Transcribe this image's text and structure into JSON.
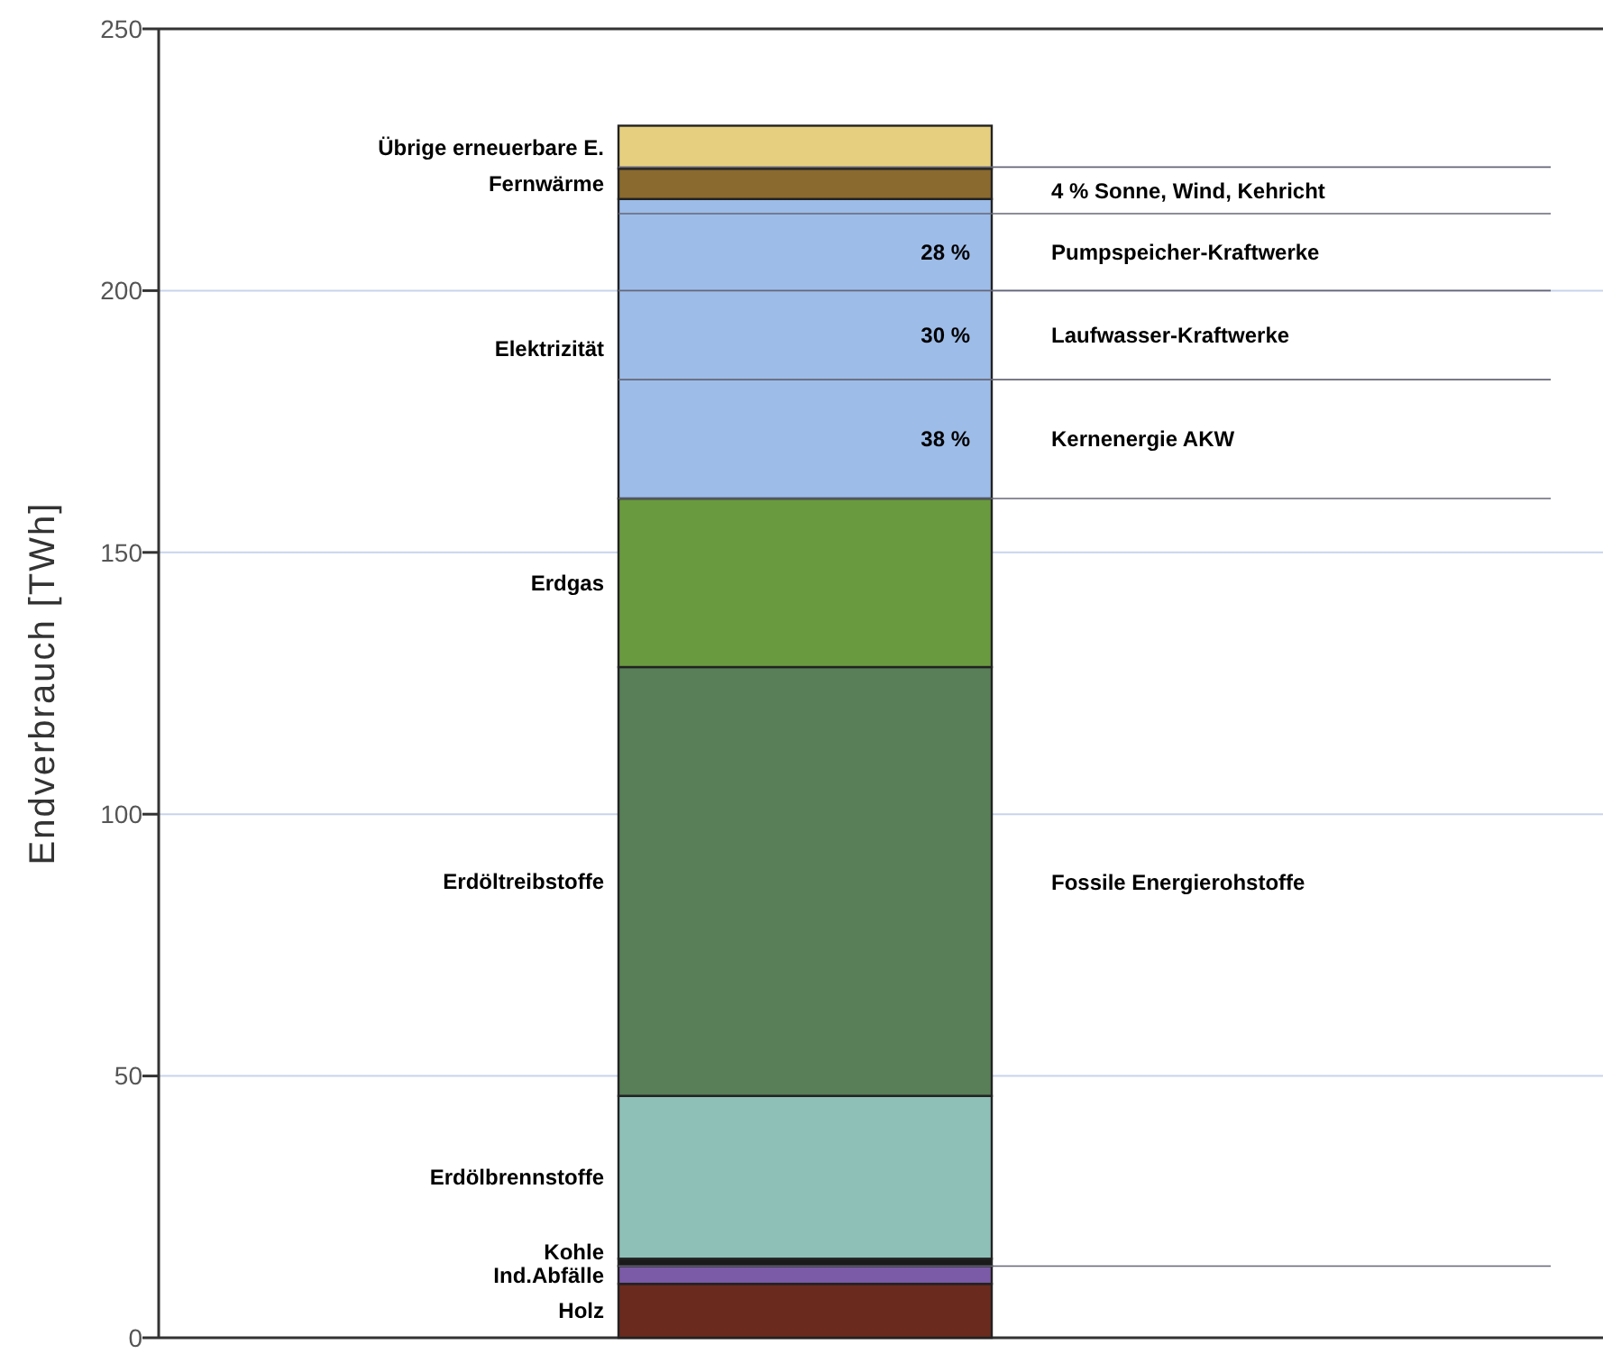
{
  "chart_data": {
    "type": "bar",
    "stacked": true,
    "ylabel": "Endverbrauch  [TWh]",
    "categories": [
      null
    ],
    "series": [
      {
        "name": "Holz",
        "color": "#6b2a1e",
        "values": [
          10.3
        ]
      },
      {
        "name": "Ind.Abfälle",
        "color": "#7b5aa8",
        "values": [
          3.4
        ]
      },
      {
        "name": "Kohle",
        "color": "#1a1a1a",
        "values": [
          1.4
        ]
      },
      {
        "name": "Erdölbrennstoffe",
        "color": "#8fc0b8",
        "values": [
          31.1
        ]
      },
      {
        "name": "Erdöltreibstoffe",
        "color": "#587f58",
        "values": [
          81.9
        ]
      },
      {
        "name": "Erdgas",
        "color": "#6a9a40",
        "values": [
          32.2
        ]
      },
      {
        "name": "Elektrizität",
        "color": "#9dbce8",
        "values": [
          57.2
        ]
      },
      {
        "name": "Fernwärme",
        "color": "#8a6a2e",
        "values": [
          5.8
        ]
      },
      {
        "name": "Übrige erneuerbare E.",
        "color": "#e6d080",
        "values": [
          8.2
        ]
      }
    ],
    "ylim": [
      0,
      250
    ],
    "yticks": [
      0,
      50,
      100,
      150,
      200,
      250
    ],
    "grid": "y",
    "ref_lines": [
      {
        "axis": "y",
        "value": 223.6
      },
      {
        "axis": "y",
        "value": 214.7,
        "label": "4 %  Sonne, Wind, Kehricht"
      },
      {
        "axis": "y",
        "value": 200,
        "label": "Pumpspeicher-Kraftwerke"
      },
      {
        "axis": "y",
        "value": 183,
        "label": "Laufwasser-Kraftwerke"
      },
      {
        "axis": "y",
        "value": 160.3,
        "label": "Kernenergie AKW"
      },
      {
        "axis": "y",
        "value": 13.7
      }
    ],
    "annotations": [
      "28 %",
      "30 %",
      "38 %",
      "Fossile Energierohstoffe"
    ]
  }
}
